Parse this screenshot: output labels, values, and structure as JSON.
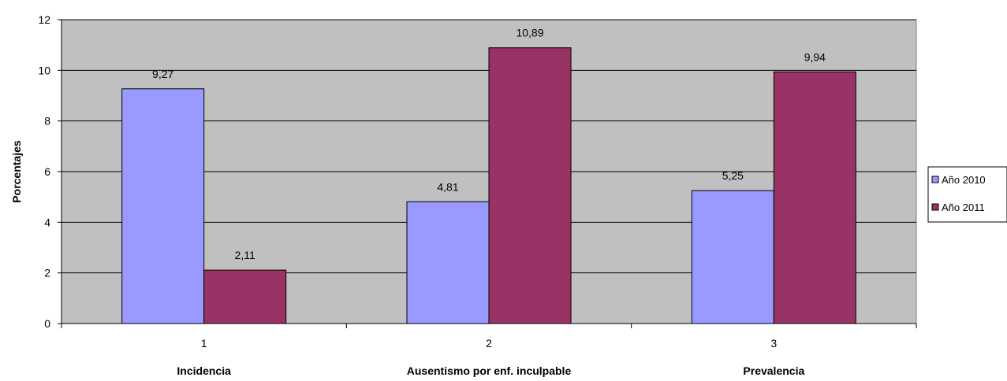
{
  "chart_data": {
    "type": "bar",
    "categories": [
      "1",
      "2",
      "3"
    ],
    "category_sublabels": [
      "Incidencia",
      "Ausentismo por enf. inculpable",
      "Prevalencia"
    ],
    "series": [
      {
        "name": "Año 2010",
        "values": [
          9.27,
          4.81,
          5.25
        ],
        "labels": [
          "9,27",
          "4,81",
          "5,25"
        ],
        "color": "#9999FF"
      },
      {
        "name": "Año 2011",
        "values": [
          2.11,
          10.89,
          9.94
        ],
        "labels": [
          "2,11",
          "10,89",
          "9,94"
        ],
        "color": "#993366"
      }
    ],
    "title": "",
    "xlabel": "",
    "ylabel": "Porcentajes",
    "ylim": [
      0,
      12
    ],
    "yticks": [
      0,
      2,
      4,
      6,
      8,
      10,
      12
    ],
    "grid": true,
    "legend_position": "right",
    "plot_background": "#C0C0C0"
  }
}
